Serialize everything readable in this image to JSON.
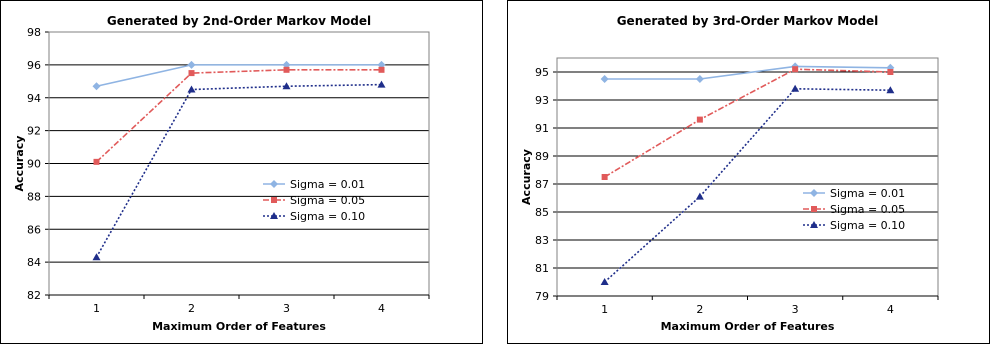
{
  "chart_data": [
    {
      "type": "line",
      "title": "Generated by 2nd-Order Markov Model",
      "xlabel": "Maximum Order of Features",
      "ylabel": "Accuracy",
      "categories": [
        "1",
        "2",
        "3",
        "4"
      ],
      "ylim": [
        82,
        98
      ],
      "yticks": [
        "82",
        "84",
        "86",
        "88",
        "90",
        "92",
        "94",
        "96",
        "98"
      ],
      "grid": true,
      "legend_position": "right",
      "series": [
        {
          "name": "Sigma = 0.01",
          "values": [
            94.7,
            96.0,
            96.0,
            96.0
          ],
          "color": "#8fb4e3",
          "marker": "diamond",
          "dash": "solid"
        },
        {
          "name": "Sigma = 0.05",
          "values": [
            90.1,
            95.5,
            95.7,
            95.7
          ],
          "color": "#e15a5a",
          "marker": "square",
          "dash": "dashdot"
        },
        {
          "name": "Sigma = 0.10",
          "values": [
            84.3,
            94.5,
            94.7,
            94.8
          ],
          "color": "#1f2e8a",
          "marker": "triangle",
          "dash": "dotted"
        }
      ]
    },
    {
      "type": "line",
      "title": "Generated by 3rd-Order Markov Model",
      "xlabel": "Maximum Order of Features",
      "ylabel": "Accuracy",
      "categories": [
        "1",
        "2",
        "3",
        "4"
      ],
      "ylim": [
        79,
        96
      ],
      "yticks": [
        "79",
        "81",
        "83",
        "85",
        "87",
        "89",
        "91",
        "93",
        "95"
      ],
      "grid": true,
      "legend_position": "right",
      "series": [
        {
          "name": "Sigma = 0.01",
          "values": [
            94.5,
            94.5,
            95.4,
            95.3
          ],
          "color": "#8fb4e3",
          "marker": "diamond",
          "dash": "solid"
        },
        {
          "name": "Sigma = 0.05",
          "values": [
            87.5,
            91.6,
            95.2,
            95.0
          ],
          "color": "#e15a5a",
          "marker": "square",
          "dash": "dashdot"
        },
        {
          "name": "Sigma = 0.10",
          "values": [
            80.0,
            86.1,
            93.8,
            93.7
          ],
          "color": "#1f2e8a",
          "marker": "triangle",
          "dash": "dotted"
        }
      ]
    }
  ]
}
